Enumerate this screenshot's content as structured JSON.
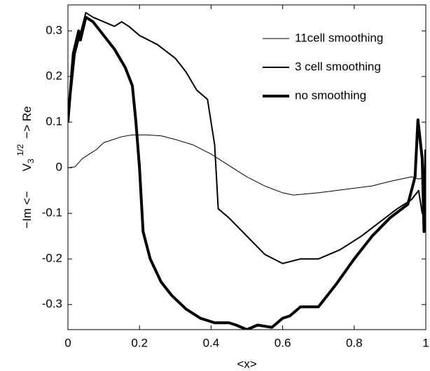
{
  "chart_data": {
    "type": "line",
    "xlabel": "<x>",
    "ylabel": [
      "−Im <−",
      "V",
      "3",
      "1/2",
      "−> Re"
    ],
    "xlim": [
      0,
      1
    ],
    "ylim": [
      -0.355,
      0.357
    ],
    "xticks": [
      0,
      0.2,
      0.4,
      0.6,
      0.8,
      1
    ],
    "yticks": [
      -0.3,
      -0.2,
      -0.1,
      0,
      0.1,
      0.2,
      0.3
    ],
    "legend": "upper right",
    "series": [
      {
        "name": "11cell smoothing",
        "color": "#000000",
        "linewidth": 1,
        "x": [
          0,
          0.02,
          0.04,
          0.06,
          0.08,
          0.1,
          0.12,
          0.15,
          0.18,
          0.22,
          0.26,
          0.3,
          0.35,
          0.4,
          0.45,
          0.5,
          0.55,
          0.6,
          0.63,
          0.7,
          0.75,
          0.8,
          0.85,
          0.9,
          0.93,
          0.96,
          0.98,
          1.0
        ],
        "values": [
          0,
          0.002,
          0.02,
          0.03,
          0.04,
          0.055,
          0.06,
          0.068,
          0.072,
          0.072,
          0.07,
          0.062,
          0.05,
          0.03,
          0.005,
          -0.02,
          -0.04,
          -0.055,
          -0.06,
          -0.055,
          -0.05,
          -0.045,
          -0.04,
          -0.03,
          -0.025,
          -0.02,
          -0.025,
          -0.02
        ]
      },
      {
        "name": "3 cell smoothing",
        "color": "#000000",
        "linewidth": 2,
        "x": [
          0,
          0.02,
          0.05,
          0.07,
          0.1,
          0.13,
          0.15,
          0.17,
          0.2,
          0.25,
          0.3,
          0.33,
          0.36,
          0.39,
          0.41,
          0.42,
          0.45,
          0.5,
          0.55,
          0.6,
          0.65,
          0.7,
          0.76,
          0.82,
          0.87,
          0.92,
          0.96,
          0.98,
          0.99,
          1.0
        ],
        "values": [
          0.1,
          0.25,
          0.34,
          0.33,
          0.32,
          0.31,
          0.32,
          0.31,
          0.29,
          0.27,
          0.24,
          0.21,
          0.17,
          0.15,
          0.05,
          -0.09,
          -0.11,
          -0.15,
          -0.19,
          -0.21,
          -0.2,
          -0.2,
          -0.18,
          -0.15,
          -0.12,
          -0.09,
          -0.07,
          -0.05,
          -0.1,
          0.0
        ]
      },
      {
        "name": "no smoothing",
        "color": "#000000",
        "linewidth": 4,
        "x": [
          0,
          0.015,
          0.03,
          0.035,
          0.05,
          0.07,
          0.1,
          0.13,
          0.16,
          0.17,
          0.18,
          0.19,
          0.2,
          0.21,
          0.23,
          0.26,
          0.29,
          0.33,
          0.37,
          0.41,
          0.45,
          0.47,
          0.5,
          0.53,
          0.57,
          0.6,
          0.62,
          0.65,
          0.7,
          0.75,
          0.8,
          0.85,
          0.9,
          0.95,
          0.97,
          0.978,
          0.99,
          0.995,
          1.0
        ],
        "values": [
          0.1,
          0.25,
          0.3,
          0.28,
          0.33,
          0.32,
          0.29,
          0.26,
          0.22,
          0.2,
          0.18,
          0.1,
          0.0,
          -0.14,
          -0.2,
          -0.25,
          -0.28,
          -0.31,
          -0.33,
          -0.34,
          -0.34,
          -0.345,
          -0.355,
          -0.345,
          -0.35,
          -0.33,
          -0.325,
          -0.305,
          -0.305,
          -0.255,
          -0.2,
          -0.15,
          -0.11,
          -0.08,
          -0.02,
          0.105,
          0.02,
          -0.14,
          0.04
        ]
      }
    ]
  }
}
